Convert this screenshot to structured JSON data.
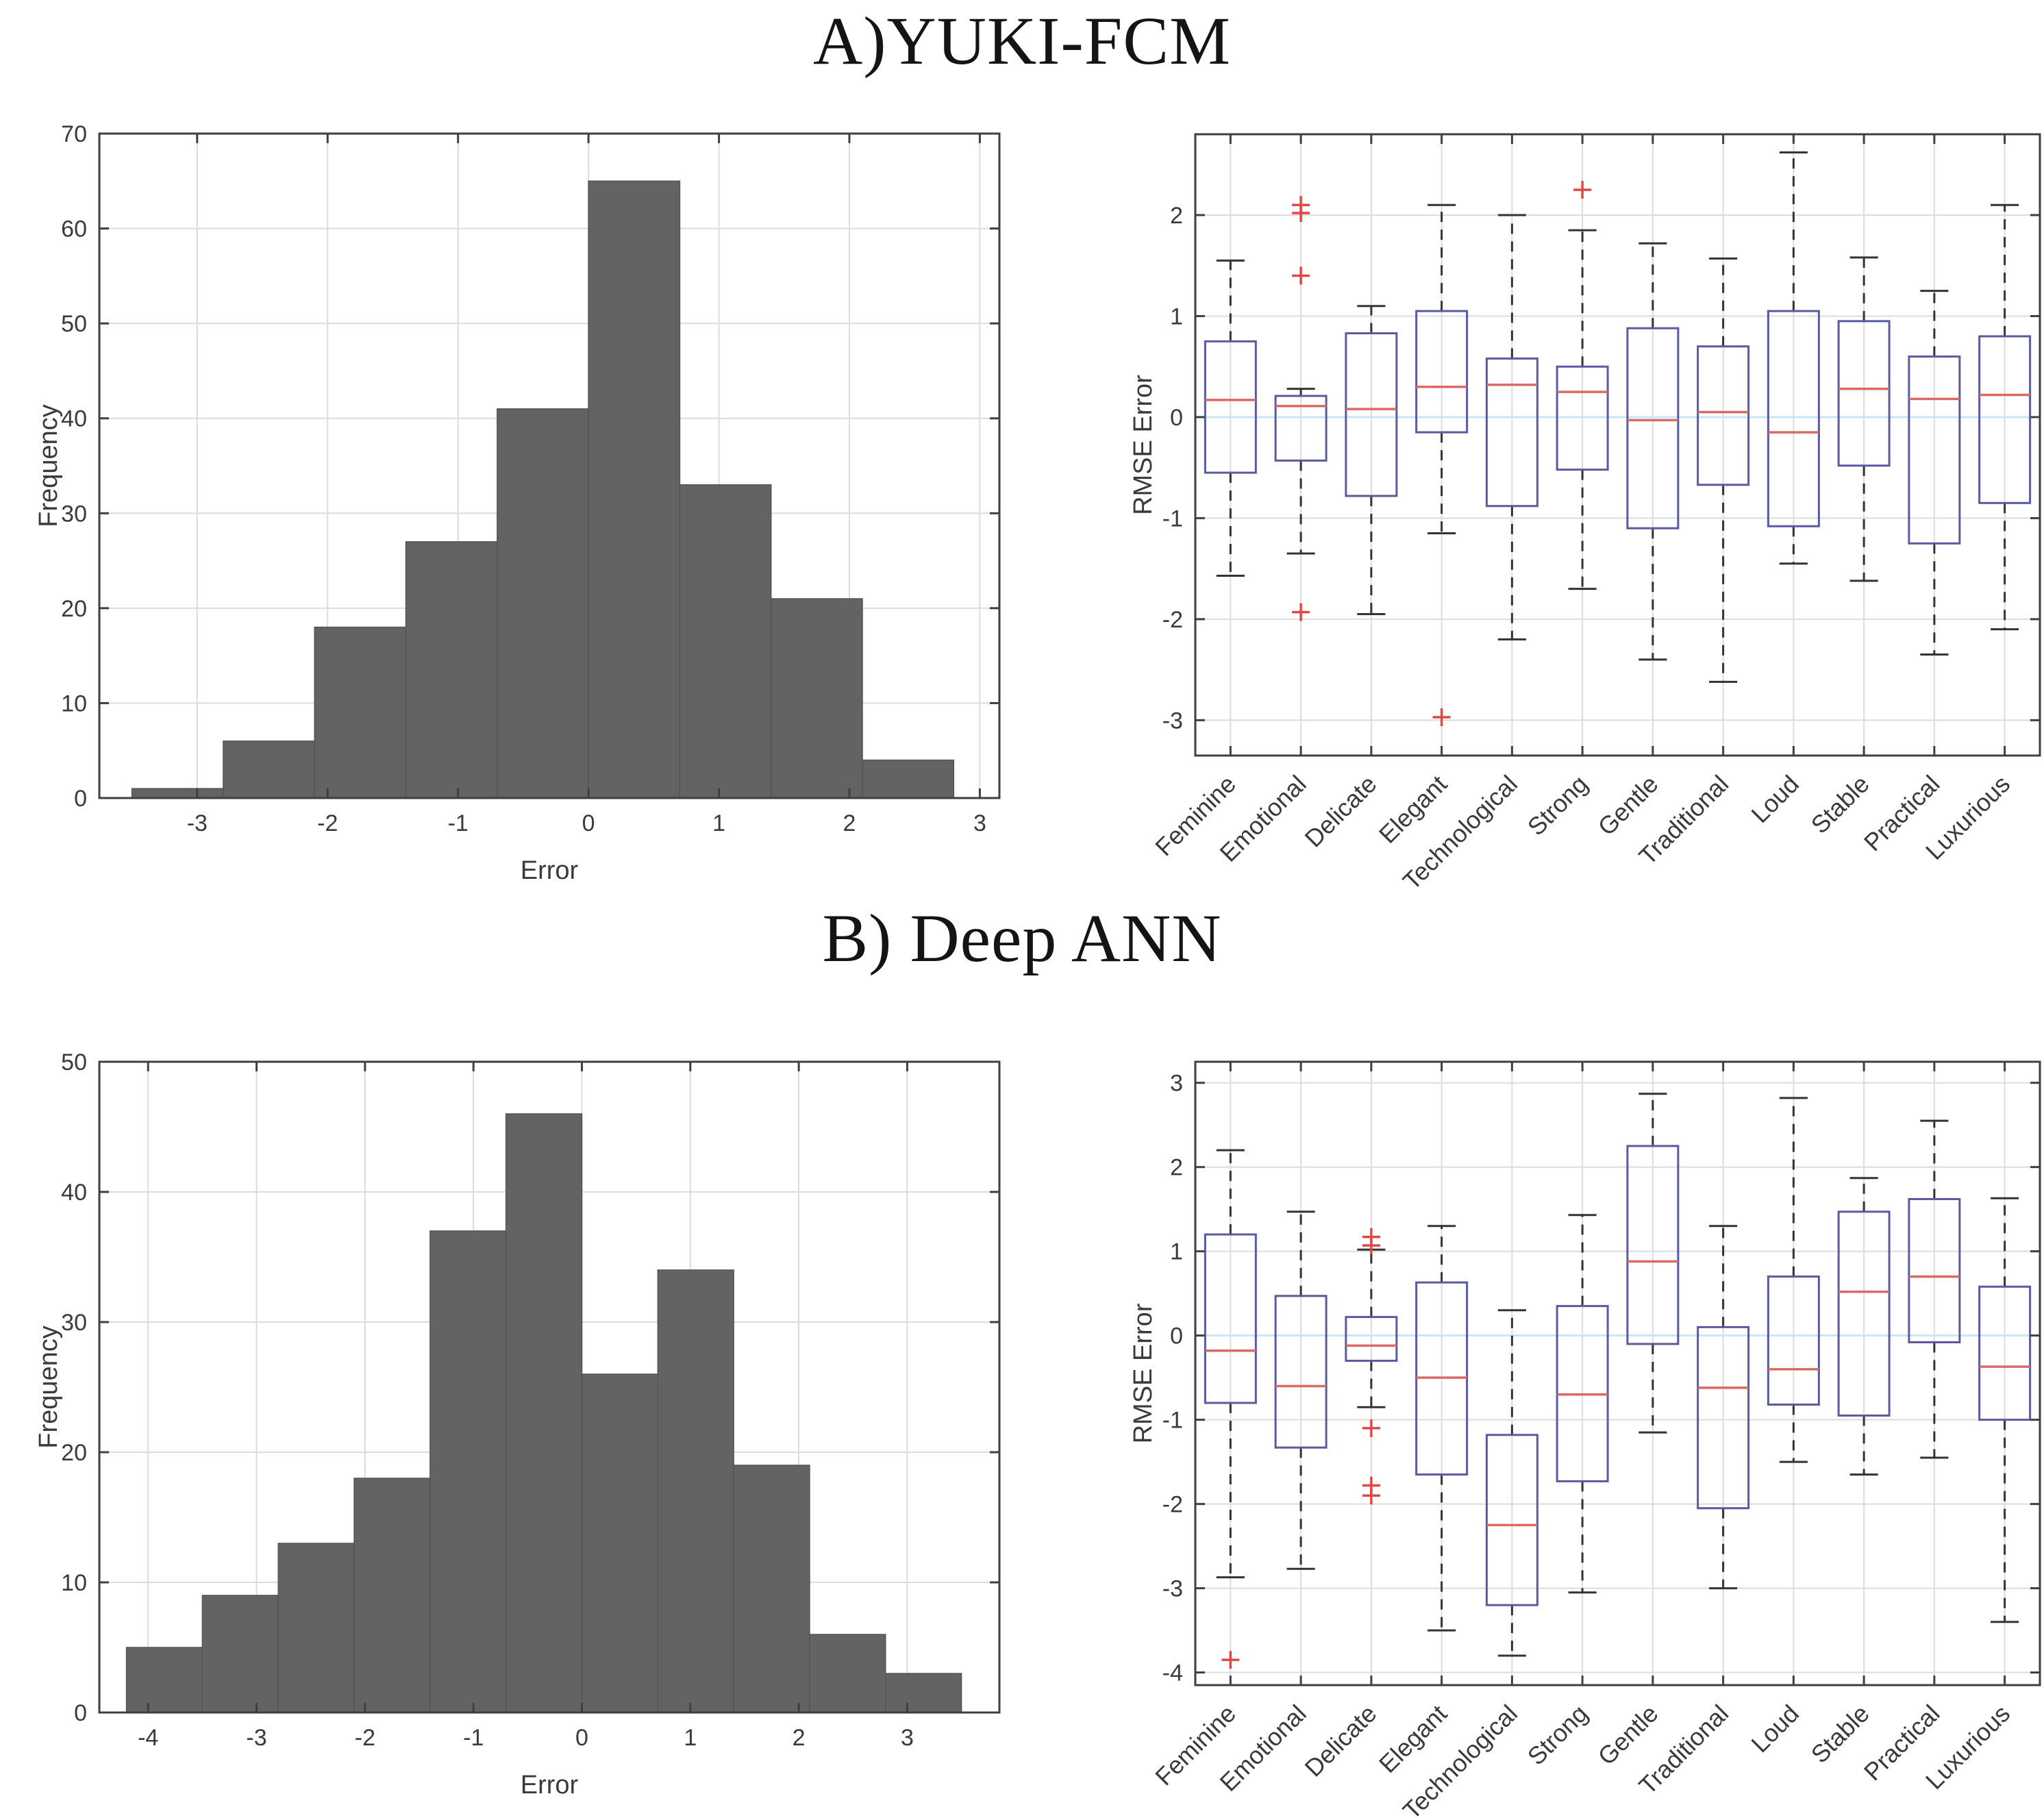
{
  "titles": {
    "section_a": "A)YUKI-FCM",
    "section_b": "B) Deep ANN"
  },
  "palette": {
    "bar_fill": "#636363",
    "bar_edge": "#555555",
    "box_edge": "#5a5a9e",
    "median": "#d96a65",
    "whisker": "#333333",
    "outlier": "#e04848",
    "grid": "#dcdcdc",
    "zero_line": "#c9e6f5",
    "spine": "#3f3f3f",
    "text": "#3a3a3a"
  },
  "chart_data": [
    {
      "id": "hist-a",
      "type": "bar",
      "subtype": "histogram",
      "panel": "A",
      "xlabel": "Error",
      "ylabel": "Frequency",
      "bin_edges": [
        -3.5,
        -2.8,
        -2.1,
        -1.4,
        -0.7,
        0,
        0.7,
        1.4,
        2.1,
        2.8
      ],
      "counts": [
        1,
        6,
        18,
        27,
        41,
        65,
        33,
        21,
        4
      ],
      "xlim": [
        -3.75,
        3.15
      ],
      "ylim": [
        0,
        70
      ],
      "xticks": [
        -3,
        -2,
        -1,
        0,
        1,
        2,
        3
      ],
      "yticks": [
        0,
        10,
        20,
        30,
        40,
        50,
        60,
        70
      ],
      "grid": true
    },
    {
      "id": "box-a",
      "type": "boxplot",
      "panel": "A",
      "xlabel": "",
      "ylabel": "RMSE Error",
      "categories": [
        "Feminine",
        "Emotional",
        "Delicate",
        "Elegant",
        "Technological",
        "Strong",
        "Gentle",
        "Traditional",
        "Loud",
        "Stable",
        "Practical",
        "Luxurious"
      ],
      "ylim": [
        -3.35,
        2.8
      ],
      "yticks": [
        -3,
        -2,
        -1,
        0,
        1,
        2
      ],
      "grid": true,
      "boxes": [
        {
          "whisker_low": -1.57,
          "q1": -0.55,
          "median": 0.17,
          "q3": 0.75,
          "whisker_high": 1.55,
          "outliers": []
        },
        {
          "whisker_low": -1.35,
          "q1": -0.43,
          "median": 0.11,
          "q3": 0.21,
          "whisker_high": 0.28,
          "outliers": [
            2.1,
            2.02,
            1.4,
            -1.93
          ]
        },
        {
          "whisker_low": -1.95,
          "q1": -0.78,
          "median": 0.08,
          "q3": 0.83,
          "whisker_high": 1.1,
          "outliers": []
        },
        {
          "whisker_low": -1.15,
          "q1": -0.15,
          "median": 0.3,
          "q3": 1.05,
          "whisker_high": 2.1,
          "outliers": [
            -2.97
          ]
        },
        {
          "whisker_low": -2.2,
          "q1": -0.88,
          "median": 0.32,
          "q3": 0.58,
          "whisker_high": 2.0,
          "outliers": []
        },
        {
          "whisker_low": -1.7,
          "q1": -0.52,
          "median": 0.25,
          "q3": 0.5,
          "whisker_high": 1.85,
          "outliers": [
            2.25
          ]
        },
        {
          "whisker_low": -2.4,
          "q1": -1.1,
          "median": -0.03,
          "q3": 0.88,
          "whisker_high": 1.72,
          "outliers": []
        },
        {
          "whisker_low": -2.62,
          "q1": -0.67,
          "median": 0.05,
          "q3": 0.7,
          "whisker_high": 1.57,
          "outliers": []
        },
        {
          "whisker_low": -1.45,
          "q1": -1.08,
          "median": -0.15,
          "q3": 1.05,
          "whisker_high": 2.62,
          "outliers": []
        },
        {
          "whisker_low": -1.62,
          "q1": -0.48,
          "median": 0.28,
          "q3": 0.95,
          "whisker_high": 1.58,
          "outliers": []
        },
        {
          "whisker_low": -2.35,
          "q1": -1.25,
          "median": 0.18,
          "q3": 0.6,
          "whisker_high": 1.25,
          "outliers": []
        },
        {
          "whisker_low": -2.1,
          "q1": -0.85,
          "median": 0.22,
          "q3": 0.8,
          "whisker_high": 2.1,
          "outliers": []
        }
      ]
    },
    {
      "id": "hist-b",
      "type": "bar",
      "subtype": "histogram",
      "panel": "B",
      "xlabel": "Error",
      "ylabel": "Frequency",
      "bin_edges": [
        -4.2,
        -3.5,
        -2.8,
        -2.1,
        -1.4,
        -0.7,
        0,
        0.7,
        1.4,
        2.1,
        2.8,
        3.5
      ],
      "counts": [
        5,
        9,
        13,
        18,
        37,
        46,
        26,
        34,
        19,
        6,
        3
      ],
      "xlim": [
        -4.45,
        3.85
      ],
      "ylim": [
        0,
        50
      ],
      "xticks": [
        -4,
        -3,
        -2,
        -1,
        0,
        1,
        2,
        3
      ],
      "yticks": [
        0,
        10,
        20,
        30,
        40,
        50
      ],
      "grid": true
    },
    {
      "id": "box-b",
      "type": "boxplot",
      "panel": "B",
      "xlabel": "",
      "ylabel": "RMSE Error",
      "categories": [
        "Feminine",
        "Emotional",
        "Delicate",
        "Elegant",
        "Technological",
        "Strong",
        "Gentle",
        "Traditional",
        "Loud",
        "Stable",
        "Practical",
        "Luxurious"
      ],
      "ylim": [
        -4.15,
        3.25
      ],
      "yticks": [
        -4,
        -3,
        -2,
        -1,
        0,
        1,
        2,
        3
      ],
      "grid": true,
      "boxes": [
        {
          "whisker_low": -2.87,
          "q1": -0.8,
          "median": -0.18,
          "q3": 1.2,
          "whisker_high": 2.2,
          "outliers": [
            -3.85
          ]
        },
        {
          "whisker_low": -2.77,
          "q1": -1.33,
          "median": -0.6,
          "q3": 0.47,
          "whisker_high": 1.47,
          "outliers": []
        },
        {
          "whisker_low": -0.85,
          "q1": -0.3,
          "median": -0.12,
          "q3": 0.22,
          "whisker_high": 1.02,
          "outliers": [
            1.17,
            1.07,
            -1.1,
            -1.78,
            -1.9
          ]
        },
        {
          "whisker_low": -3.5,
          "q1": -1.65,
          "median": -0.5,
          "q3": 0.63,
          "whisker_high": 1.3,
          "outliers": []
        },
        {
          "whisker_low": -3.8,
          "q1": -3.2,
          "median": -2.25,
          "q3": -1.18,
          "whisker_high": 0.3,
          "outliers": []
        },
        {
          "whisker_low": -3.05,
          "q1": -1.73,
          "median": -0.7,
          "q3": 0.35,
          "whisker_high": 1.43,
          "outliers": []
        },
        {
          "whisker_low": -1.15,
          "q1": -0.1,
          "median": 0.88,
          "q3": 2.25,
          "whisker_high": 2.87,
          "outliers": []
        },
        {
          "whisker_low": -3.0,
          "q1": -2.05,
          "median": -0.62,
          "q3": 0.1,
          "whisker_high": 1.3,
          "outliers": []
        },
        {
          "whisker_low": -1.5,
          "q1": -0.82,
          "median": -0.4,
          "q3": 0.7,
          "whisker_high": 2.82,
          "outliers": []
        },
        {
          "whisker_low": -1.65,
          "q1": -0.95,
          "median": 0.52,
          "q3": 1.47,
          "whisker_high": 1.87,
          "outliers": []
        },
        {
          "whisker_low": -1.45,
          "q1": -0.08,
          "median": 0.7,
          "q3": 1.62,
          "whisker_high": 2.55,
          "outliers": []
        },
        {
          "whisker_low": -3.4,
          "q1": -1.0,
          "median": -0.37,
          "q3": 0.58,
          "whisker_high": 1.63,
          "outliers": []
        }
      ]
    }
  ]
}
